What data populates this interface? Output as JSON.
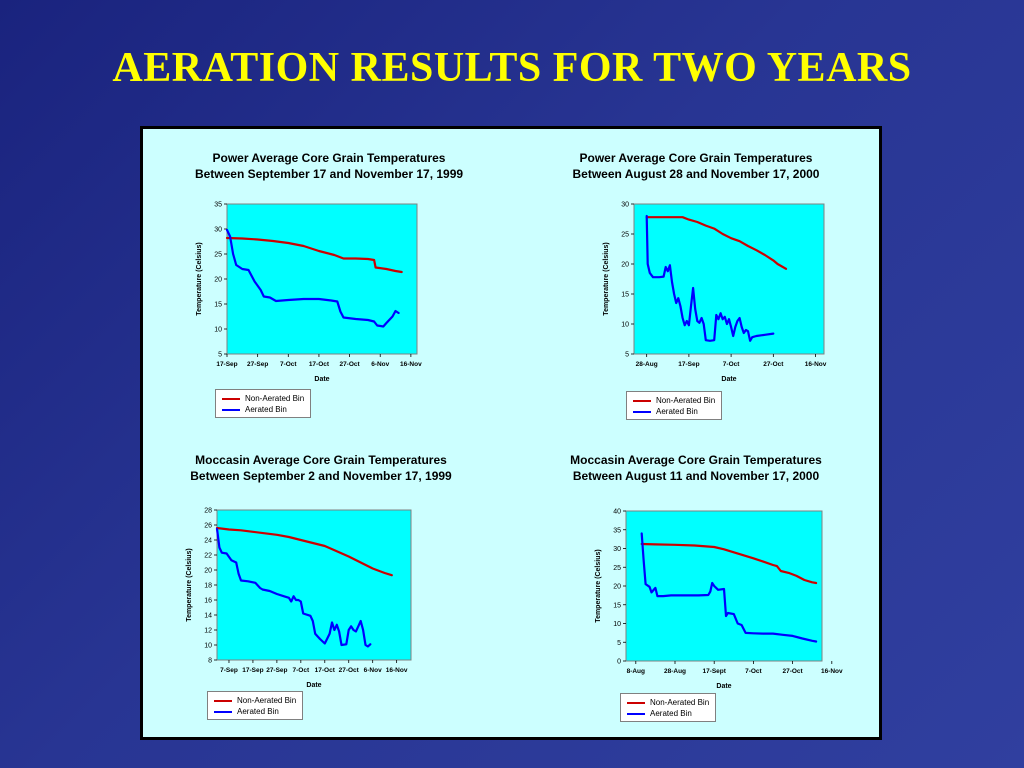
{
  "title": "AERATION RESULTS FOR TWO YEARS",
  "colors": {
    "title": "#ffff00",
    "panel_bg": "#ccffff",
    "plot_bg": "#00ffff",
    "non_aerated": "#cc0000",
    "aerated": "#0000ff"
  },
  "chart_data": [
    {
      "type": "line",
      "title_lines": [
        "Power Average Core Grain Temperatures",
        "Between September 17 and November 17, 1999"
      ],
      "xlabel": "Date",
      "ylabel": "Temperature (Celsius)",
      "ylim": [
        5,
        35
      ],
      "yticks": [
        5,
        10,
        15,
        20,
        25,
        30,
        35
      ],
      "xlim": [
        0,
        62
      ],
      "xticks": [
        {
          "x": 0,
          "label": "17-Sep"
        },
        {
          "x": 10,
          "label": "27-Sep"
        },
        {
          "x": 20,
          "label": "7-Oct"
        },
        {
          "x": 30,
          "label": "17-Oct"
        },
        {
          "x": 40,
          "label": "27-Oct"
        },
        {
          "x": 50,
          "label": "6-Nov"
        },
        {
          "x": 60,
          "label": "16-Nov"
        }
      ],
      "grid": false,
      "legend": "below",
      "series": [
        {
          "name": "Non-Aerated Bin",
          "color": "#cc0000",
          "points": [
            [
              0,
              28.2
            ],
            [
              5,
              28.1
            ],
            [
              10,
              27.9
            ],
            [
              15,
              27.6
            ],
            [
              20,
              27.2
            ],
            [
              25,
              26.6
            ],
            [
              30,
              25.6
            ],
            [
              35,
              24.8
            ],
            [
              38,
              24.1
            ],
            [
              42,
              24.1
            ],
            [
              46,
              24.0
            ],
            [
              48,
              23.8
            ],
            [
              48.5,
              22.3
            ],
            [
              52,
              22.0
            ],
            [
              55,
              21.6
            ],
            [
              57,
              21.4
            ]
          ]
        },
        {
          "name": "Aerated Bin",
          "color": "#0000ff",
          "points": [
            [
              0,
              29.8
            ],
            [
              1,
              28.5
            ],
            [
              2,
              25.0
            ],
            [
              3,
              22.8
            ],
            [
              5,
              22.0
            ],
            [
              7,
              21.8
            ],
            [
              9,
              19.5
            ],
            [
              11,
              17.8
            ],
            [
              12,
              16.5
            ],
            [
              14,
              16.3
            ],
            [
              16,
              15.6
            ],
            [
              20,
              15.8
            ],
            [
              25,
              16.0
            ],
            [
              30,
              16.0
            ],
            [
              34,
              15.7
            ],
            [
              36,
              15.5
            ],
            [
              37,
              13.5
            ],
            [
              38,
              12.3
            ],
            [
              42,
              12.0
            ],
            [
              46,
              11.8
            ],
            [
              48,
              11.5
            ],
            [
              49,
              10.7
            ],
            [
              51,
              10.5
            ],
            [
              52,
              11.2
            ],
            [
              54,
              12.5
            ],
            [
              55,
              13.6
            ],
            [
              56,
              13.2
            ]
          ]
        }
      ]
    },
    {
      "type": "line",
      "title_lines": [
        "Power Average Core Grain Temperatures",
        "Between August 28 and November 17, 2000"
      ],
      "xlabel": "Date",
      "ylabel": "Temperature (Celsius)",
      "ylim": [
        5,
        30
      ],
      "yticks": [
        5,
        10,
        15,
        20,
        25,
        30
      ],
      "xlim": [
        -6,
        84
      ],
      "xticks": [
        {
          "x": 0,
          "label": "28-Aug"
        },
        {
          "x": 20,
          "label": "17-Sep"
        },
        {
          "x": 40,
          "label": "7-Oct"
        },
        {
          "x": 60,
          "label": "27-Oct"
        },
        {
          "x": 80,
          "label": "16-Nov"
        }
      ],
      "grid": false,
      "legend": "below",
      "series": [
        {
          "name": "Non-Aerated Bin",
          "color": "#cc0000",
          "points": [
            [
              0,
              27.8
            ],
            [
              5,
              27.8
            ],
            [
              10,
              27.8
            ],
            [
              17,
              27.8
            ],
            [
              20,
              27.4
            ],
            [
              24,
              27.0
            ],
            [
              28,
              26.4
            ],
            [
              32,
              25.9
            ],
            [
              36,
              25.0
            ],
            [
              40,
              24.3
            ],
            [
              44,
              23.8
            ],
            [
              48,
              23.0
            ],
            [
              52,
              22.3
            ],
            [
              56,
              21.5
            ],
            [
              60,
              20.6
            ],
            [
              62,
              20.0
            ],
            [
              66,
              19.2
            ]
          ]
        },
        {
          "name": "Aerated Bin",
          "color": "#0000ff",
          "points": [
            [
              0,
              28.0
            ],
            [
              0.5,
              20.0
            ],
            [
              1.5,
              18.5
            ],
            [
              3,
              17.8
            ],
            [
              6,
              17.8
            ],
            [
              8,
              17.9
            ],
            [
              9,
              19.5
            ],
            [
              10,
              18.8
            ],
            [
              11,
              19.8
            ],
            [
              12,
              17.0
            ],
            [
              13,
              15.0
            ],
            [
              14,
              13.5
            ],
            [
              15,
              14.3
            ],
            [
              16,
              13.0
            ],
            [
              17,
              11.0
            ],
            [
              18,
              9.8
            ],
            [
              19,
              10.5
            ],
            [
              20,
              9.8
            ],
            [
              21,
              13.0
            ],
            [
              22,
              16.0
            ],
            [
              23,
              12.5
            ],
            [
              24,
              10.5
            ],
            [
              25,
              10.2
            ],
            [
              26,
              11.0
            ],
            [
              27,
              10.0
            ],
            [
              28,
              7.3
            ],
            [
              30,
              7.2
            ],
            [
              32,
              7.3
            ],
            [
              33,
              11.5
            ],
            [
              34,
              10.8
            ],
            [
              35,
              11.8
            ],
            [
              36,
              10.8
            ],
            [
              37,
              11.2
            ],
            [
              38,
              10.0
            ],
            [
              39,
              10.8
            ],
            [
              40,
              9.5
            ],
            [
              41,
              8.0
            ],
            [
              42,
              9.5
            ],
            [
              43,
              10.5
            ],
            [
              44,
              11.0
            ],
            [
              45,
              9.5
            ],
            [
              46,
              8.5
            ],
            [
              47,
              9.0
            ],
            [
              48,
              8.8
            ],
            [
              49,
              7.2
            ],
            [
              50,
              7.8
            ],
            [
              52,
              8.0
            ],
            [
              56,
              8.2
            ],
            [
              60,
              8.4
            ]
          ]
        }
      ]
    },
    {
      "type": "line",
      "title_lines": [
        "Moccasin Average Core Grain Temperatures",
        "Between September 2 and November 17, 1999"
      ],
      "xlabel": "Date",
      "ylabel": "Temperature (Celsius)",
      "ylim": [
        8,
        28
      ],
      "yticks": [
        8,
        10,
        12,
        14,
        16,
        18,
        20,
        22,
        24,
        26,
        28
      ],
      "xlim": [
        -5,
        76
      ],
      "xticks": [
        {
          "x": 0,
          "label": "7-Sep"
        },
        {
          "x": 10,
          "label": "17-Sep"
        },
        {
          "x": 20,
          "label": "27-Sep"
        },
        {
          "x": 30,
          "label": "7-Oct"
        },
        {
          "x": 40,
          "label": "17-Oct"
        },
        {
          "x": 50,
          "label": "27-Oct"
        },
        {
          "x": 60,
          "label": "6-Nov"
        },
        {
          "x": 70,
          "label": "16-Nov"
        }
      ],
      "grid": false,
      "legend": "below",
      "series": [
        {
          "name": "Non-Aerated Bin",
          "color": "#cc0000",
          "points": [
            [
              -5,
              25.6
            ],
            [
              0,
              25.4
            ],
            [
              5,
              25.3
            ],
            [
              10,
              25.1
            ],
            [
              15,
              24.9
            ],
            [
              20,
              24.7
            ],
            [
              25,
              24.4
            ],
            [
              30,
              24.0
            ],
            [
              35,
              23.6
            ],
            [
              40,
              23.2
            ],
            [
              45,
              22.5
            ],
            [
              50,
              21.8
            ],
            [
              55,
              21.0
            ],
            [
              60,
              20.2
            ],
            [
              65,
              19.6
            ],
            [
              68,
              19.3
            ]
          ]
        },
        {
          "name": "Aerated Bin",
          "color": "#0000ff",
          "points": [
            [
              -5,
              25.5
            ],
            [
              -4,
              23.0
            ],
            [
              -3,
              22.3
            ],
            [
              -1,
              22.2
            ],
            [
              1,
              21.3
            ],
            [
              3,
              21.0
            ],
            [
              4,
              19.5
            ],
            [
              5,
              18.6
            ],
            [
              8,
              18.5
            ],
            [
              11,
              18.3
            ],
            [
              13,
              17.6
            ],
            [
              14,
              17.4
            ],
            [
              17,
              17.2
            ],
            [
              20,
              16.8
            ],
            [
              23,
              16.5
            ],
            [
              25,
              16.3
            ],
            [
              26,
              15.8
            ],
            [
              27,
              16.5
            ],
            [
              28,
              16.0
            ],
            [
              29,
              16.0
            ],
            [
              30,
              15.8
            ],
            [
              31,
              14.2
            ],
            [
              34,
              13.9
            ],
            [
              35,
              13.2
            ],
            [
              36,
              11.5
            ],
            [
              38,
              10.8
            ],
            [
              40,
              10.2
            ],
            [
              42,
              11.5
            ],
            [
              43,
              13.0
            ],
            [
              44,
              12.0
            ],
            [
              45,
              12.7
            ],
            [
              46,
              11.8
            ],
            [
              47,
              10.0
            ],
            [
              49,
              10.1
            ],
            [
              50,
              12.0
            ],
            [
              51,
              12.5
            ],
            [
              52,
              12.0
            ],
            [
              53,
              11.8
            ],
            [
              54,
              12.5
            ],
            [
              55,
              13.2
            ],
            [
              56,
              12.0
            ],
            [
              57,
              10.0
            ],
            [
              58,
              9.8
            ],
            [
              59,
              10.1
            ]
          ]
        }
      ]
    },
    {
      "type": "line",
      "title_lines": [
        "Moccasin Average Core Grain Temperatures",
        "Between August 11 and November 17, 2000"
      ],
      "xlabel": "Date",
      "ylabel": "Temperature (Celsius)",
      "ylim": [
        0,
        40
      ],
      "yticks": [
        0,
        5,
        10,
        15,
        20,
        25,
        30,
        35,
        40
      ],
      "xlim": [
        -5,
        95
      ],
      "xticks": [
        {
          "x": 0,
          "label": "8-Aug"
        },
        {
          "x": 20,
          "label": "28-Aug"
        },
        {
          "x": 40,
          "label": "17-Sept"
        },
        {
          "x": 60,
          "label": "7-Oct"
        },
        {
          "x": 80,
          "label": "27-Oct"
        },
        {
          "x": 100,
          "label": "16-Nov"
        }
      ],
      "grid": false,
      "legend": "below",
      "series": [
        {
          "name": "Non-Aerated Bin",
          "color": "#cc0000",
          "points": [
            [
              3,
              31.2
            ],
            [
              10,
              31.1
            ],
            [
              20,
              31.0
            ],
            [
              30,
              30.8
            ],
            [
              40,
              30.4
            ],
            [
              45,
              29.8
            ],
            [
              50,
              29.0
            ],
            [
              55,
              28.2
            ],
            [
              60,
              27.4
            ],
            [
              65,
              26.5
            ],
            [
              70,
              25.6
            ],
            [
              72,
              25.3
            ],
            [
              74,
              24.0
            ],
            [
              78,
              23.5
            ],
            [
              82,
              22.7
            ],
            [
              86,
              21.6
            ],
            [
              90,
              21.0
            ],
            [
              92,
              20.8
            ]
          ]
        },
        {
          "name": "Aerated Bin",
          "color": "#0000ff",
          "points": [
            [
              3,
              34.0
            ],
            [
              4,
              27.0
            ],
            [
              5,
              20.5
            ],
            [
              7,
              19.8
            ],
            [
              8,
              18.3
            ],
            [
              10,
              19.5
            ],
            [
              11,
              17.3
            ],
            [
              14,
              17.3
            ],
            [
              18,
              17.5
            ],
            [
              25,
              17.5
            ],
            [
              32,
              17.5
            ],
            [
              37,
              17.6
            ],
            [
              38,
              18.5
            ],
            [
              39,
              20.8
            ],
            [
              40,
              20.0
            ],
            [
              42,
              19.0
            ],
            [
              45,
              19.2
            ],
            [
              46,
              12.0
            ],
            [
              47,
              12.8
            ],
            [
              50,
              12.5
            ],
            [
              52,
              10.0
            ],
            [
              54,
              9.6
            ],
            [
              56,
              7.5
            ],
            [
              60,
              7.4
            ],
            [
              65,
              7.3
            ],
            [
              70,
              7.3
            ],
            [
              75,
              7.0
            ],
            [
              80,
              6.7
            ],
            [
              85,
              6.0
            ],
            [
              90,
              5.4
            ],
            [
              92,
              5.2
            ]
          ]
        }
      ]
    }
  ]
}
